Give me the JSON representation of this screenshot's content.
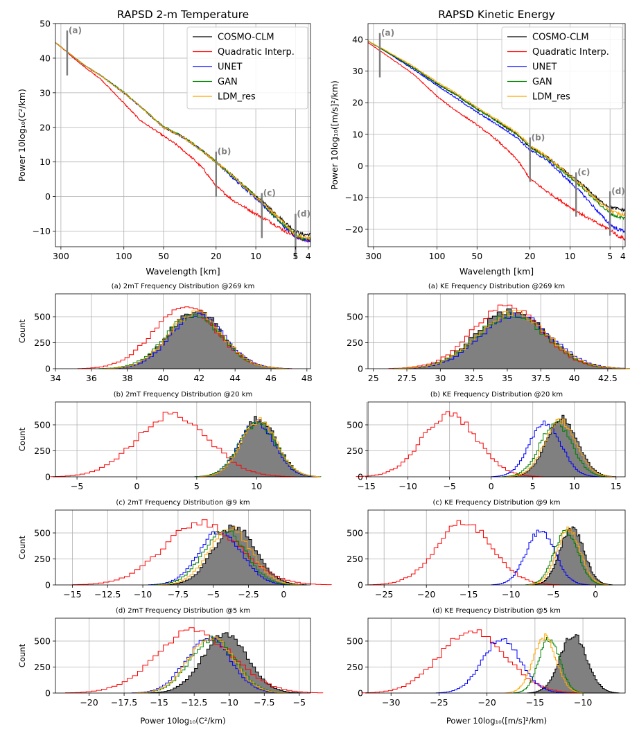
{
  "chart_data": [
    {
      "type": "line",
      "title": "RAPSD 2-m Temperature",
      "xlabel": "Wavelength [km]",
      "ylabel": "Power 10log₁₀(C²/km)",
      "xscale": "log, inverted",
      "xlim": [
        330,
        3.85
      ],
      "ylim": [
        -14.5,
        50
      ],
      "xticks": [
        300,
        100,
        50,
        20,
        10,
        5,
        4
      ],
      "yticks": [
        -10,
        0,
        10,
        20,
        30,
        40,
        50
      ],
      "legend": "top-right",
      "series": [
        {
          "name": "COSMO-CLM",
          "color": "#000000",
          "x": [
            330,
            200,
            150,
            100,
            75,
            50,
            35,
            25,
            20,
            15,
            10,
            8,
            6,
            5,
            4.4,
            3.9
          ],
          "y": [
            44.5,
            38,
            35,
            30,
            26,
            20,
            17,
            13,
            10,
            6,
            0,
            -3,
            -7.5,
            -10,
            -11,
            -11
          ]
        },
        {
          "name": "Quadratic Interp.",
          "color": "#ff0000",
          "x": [
            330,
            200,
            150,
            100,
            75,
            50,
            40,
            30,
            25,
            20,
            15,
            10,
            8,
            6,
            5,
            4.4,
            3.9
          ],
          "y": [
            44.5,
            37.5,
            34,
            27,
            22,
            17.5,
            15,
            11,
            8,
            3,
            -1,
            -5,
            -7,
            -10,
            -11.5,
            -12.5,
            -12.8
          ]
        },
        {
          "name": "UNET",
          "color": "#0000ff",
          "x": [
            330,
            200,
            150,
            100,
            75,
            50,
            35,
            25,
            20,
            15,
            10,
            8,
            6,
            5,
            4.4,
            3.9
          ],
          "y": [
            44.5,
            38,
            35,
            30,
            26,
            20,
            17,
            13,
            10,
            5.5,
            -0.5,
            -4,
            -9,
            -11.5,
            -12.3,
            -12.5
          ]
        },
        {
          "name": "GAN",
          "color": "#008000",
          "x": [
            330,
            200,
            150,
            100,
            75,
            50,
            35,
            25,
            20,
            15,
            10,
            8,
            6,
            5,
            4.4,
            3.9
          ],
          "y": [
            44.5,
            38,
            35,
            30.2,
            26,
            20.2,
            17.2,
            13,
            10,
            6,
            0,
            -4,
            -8.5,
            -11,
            -12,
            -12.3
          ]
        },
        {
          "name": "LDM_res",
          "color": "#ffa500",
          "x": [
            330,
            200,
            150,
            100,
            75,
            50,
            35,
            25,
            20,
            15,
            10,
            8,
            6,
            5,
            4.4,
            3.9
          ],
          "y": [
            44.5,
            38,
            35,
            30,
            26,
            20,
            17,
            13,
            10,
            6,
            0,
            -3.5,
            -8,
            -11,
            -11.8,
            -12
          ]
        }
      ],
      "markers": [
        {
          "label": "(a)",
          "x": 269,
          "y_from": 35,
          "y_to": 48
        },
        {
          "label": "(b)",
          "x": 20,
          "y_from": 0,
          "y_to": 13
        },
        {
          "label": "(c)",
          "x": 9,
          "y_from": -12,
          "y_to": 1
        },
        {
          "label": "(d)",
          "x": 5,
          "y_from": -18,
          "y_to": -5
        }
      ]
    },
    {
      "type": "line",
      "title": "RAPSD Kinetic Energy",
      "xlabel": "Wavelength [km]",
      "ylabel": "Power 10log₁₀([m/s]²/km)",
      "xscale": "log, inverted",
      "xlim": [
        330,
        3.85
      ],
      "ylim": [
        -25.5,
        45
      ],
      "xticks": [
        300,
        100,
        50,
        20,
        10,
        5,
        4
      ],
      "yticks": [
        -20,
        -10,
        0,
        10,
        20,
        30,
        40
      ],
      "legend": "top-right",
      "series": [
        {
          "name": "COSMO-CLM",
          "color": "#000000",
          "x": [
            330,
            250,
            150,
            100,
            75,
            50,
            35,
            25,
            20,
            15,
            10,
            8,
            6,
            5,
            4.4,
            3.9
          ],
          "y": [
            39.5,
            36.5,
            31,
            26,
            23,
            18,
            14,
            10,
            6,
            3,
            -3,
            -6,
            -11,
            -13,
            -13.5,
            -14
          ]
        },
        {
          "name": "Quadratic Interp.",
          "color": "#ff0000",
          "x": [
            330,
            250,
            150,
            100,
            75,
            50,
            35,
            25,
            20,
            15,
            10,
            8,
            6,
            5,
            4.4,
            3.9
          ],
          "y": [
            39,
            35.5,
            29,
            22,
            18,
            13,
            8,
            2,
            -4,
            -8,
            -13,
            -15.5,
            -18.5,
            -20,
            -22,
            -23
          ]
        },
        {
          "name": "UNET",
          "color": "#0000ff",
          "x": [
            330,
            250,
            150,
            100,
            75,
            50,
            35,
            25,
            20,
            15,
            10,
            8,
            6,
            5,
            4.4,
            3.9
          ],
          "y": [
            39.5,
            36.5,
            30.5,
            25.5,
            22,
            17,
            13,
            9,
            5,
            2,
            -5,
            -9,
            -15,
            -18.5,
            -20,
            -20.5
          ]
        },
        {
          "name": "GAN",
          "color": "#008000",
          "x": [
            330,
            250,
            150,
            100,
            75,
            50,
            35,
            25,
            20,
            15,
            10,
            8,
            6,
            5,
            4.4,
            3.9
          ],
          "y": [
            39.5,
            36.5,
            31,
            26,
            23,
            18,
            14,
            10,
            6,
            2.5,
            -3.5,
            -7,
            -12,
            -15,
            -16,
            -16.5
          ]
        },
        {
          "name": "LDM_res",
          "color": "#ffa500",
          "x": [
            330,
            250,
            150,
            100,
            75,
            50,
            35,
            25,
            20,
            15,
            10,
            8,
            6,
            5,
            4.4,
            3.9
          ],
          "y": [
            39.5,
            36.8,
            31.5,
            26.5,
            23.5,
            18.5,
            14.5,
            10.5,
            6.5,
            3,
            -3,
            -6.5,
            -11.5,
            -14,
            -15,
            -15.5
          ]
        }
      ],
      "markers": [
        {
          "label": "(a)",
          "x": 269,
          "y_from": 28,
          "y_to": 42
        },
        {
          "label": "(b)",
          "x": 20,
          "y_from": -5,
          "y_to": 9
        },
        {
          "label": "(c)",
          "x": 9,
          "y_from": -16,
          "y_to": -2
        },
        {
          "label": "(d)",
          "x": 5,
          "y_from": -22,
          "y_to": -8
        }
      ]
    },
    {
      "type": "histogram",
      "title": "(a) 2mT Frequency Distribution @269 km",
      "xlim": [
        34,
        48.2
      ],
      "xticks": [
        34,
        36,
        38,
        40,
        42,
        44,
        46,
        48
      ],
      "ylim": [
        0,
        720
      ],
      "yticks": [
        0,
        250,
        500
      ],
      "ylabel": "Count",
      "xlabel": "",
      "series": [
        {
          "name": "COSMO-CLM",
          "filled": true,
          "mean": 41.8,
          "sd": 1.5
        },
        {
          "name": "Quadratic Interp.",
          "mean": 41.2,
          "sd": 1.75
        },
        {
          "name": "UNET",
          "mean": 41.9,
          "sd": 1.5
        },
        {
          "name": "GAN",
          "mean": 41.7,
          "sd": 1.55
        },
        {
          "name": "LDM_res",
          "mean": 41.8,
          "sd": 1.5
        }
      ]
    },
    {
      "type": "histogram",
      "title": "(a) KE Frequency Distribution @269 km",
      "xlim": [
        24.6,
        43.8
      ],
      "xticks": [
        25.0,
        27.5,
        30.0,
        32.5,
        35.0,
        37.5,
        40.0,
        42.5
      ],
      "ylim": [
        0,
        720
      ],
      "yticks": [
        0,
        250,
        500
      ],
      "ylabel": "",
      "xlabel": "",
      "series": [
        {
          "name": "COSMO-CLM",
          "filled": true,
          "mean": 35.3,
          "sd": 2.6
        },
        {
          "name": "Quadratic Interp.",
          "mean": 35.0,
          "sd": 2.6
        },
        {
          "name": "UNET",
          "mean": 35.6,
          "sd": 2.6
        },
        {
          "name": "GAN",
          "mean": 35.3,
          "sd": 2.6
        },
        {
          "name": "LDM_res",
          "mean": 35.4,
          "sd": 2.6
        }
      ]
    },
    {
      "type": "histogram",
      "title": "(b) 2mT Frequency Distribution @20 km",
      "xlim": [
        -6.8,
        14.5
      ],
      "xticks": [
        -5,
        0,
        5,
        10
      ],
      "ylim": [
        0,
        720
      ],
      "yticks": [
        0,
        250,
        500
      ],
      "ylabel": "Count",
      "xlabel": "",
      "series": [
        {
          "name": "COSMO-CLM",
          "filled": true,
          "mean": 10.2,
          "sd": 1.5
        },
        {
          "name": "Quadratic Interp.",
          "mean": 3.0,
          "sd": 3.0
        },
        {
          "name": "UNET",
          "mean": 10.0,
          "sd": 1.5
        },
        {
          "name": "GAN",
          "mean": 10.1,
          "sd": 1.55
        },
        {
          "name": "LDM_res",
          "mean": 10.2,
          "sd": 1.5
        }
      ]
    },
    {
      "type": "histogram",
      "title": "(b) KE Frequency Distribution @20 km",
      "xlim": [
        -14.8,
        16.1
      ],
      "xticks": [
        -15,
        -10,
        -5,
        0,
        5,
        10,
        15
      ],
      "ylim": [
        0,
        720
      ],
      "yticks": [
        0,
        250,
        500
      ],
      "ylabel": "",
      "xlabel": "",
      "series": [
        {
          "name": "COSMO-CLM",
          "filled": true,
          "mean": 8.5,
          "sd": 1.9
        },
        {
          "name": "Quadratic Interp.",
          "mean": -5.0,
          "sd": 3.3
        },
        {
          "name": "UNET",
          "mean": 6.5,
          "sd": 1.9
        },
        {
          "name": "GAN",
          "mean": 7.8,
          "sd": 1.9
        },
        {
          "name": "LDM_res",
          "mean": 8.3,
          "sd": 1.9
        }
      ]
    },
    {
      "type": "histogram",
      "title": "(c) 2mT Frequency Distribution @9 km",
      "xlim": [
        -16.2,
        1.9
      ],
      "xticks": [
        -15.0,
        -12.5,
        -10.0,
        -7.5,
        -5.0,
        -2.5,
        0.0
      ],
      "ylim": [
        0,
        720
      ],
      "yticks": [
        0,
        250,
        500
      ],
      "ylabel": "Count",
      "xlabel": "",
      "series": [
        {
          "name": "COSMO-CLM",
          "filled": true,
          "mean": -3.5,
          "sd": 1.5
        },
        {
          "name": "Quadratic Interp.",
          "mean": -5.8,
          "sd": 2.7
        },
        {
          "name": "UNET",
          "mean": -4.5,
          "sd": 1.5
        },
        {
          "name": "GAN",
          "mean": -4.2,
          "sd": 1.5
        },
        {
          "name": "LDM_res",
          "mean": -3.8,
          "sd": 1.5
        }
      ]
    },
    {
      "type": "histogram",
      "title": "(c) KE Frequency Distribution @9 km",
      "xlim": [
        -26.9,
        3.5
      ],
      "xticks": [
        -25,
        -20,
        -15,
        -10,
        -5,
        0
      ],
      "ylim": [
        0,
        720
      ],
      "yticks": [
        0,
        250,
        500
      ],
      "ylabel": "",
      "xlabel": "",
      "series": [
        {
          "name": "COSMO-CLM",
          "filled": true,
          "mean": -2.8,
          "sd": 1.4
        },
        {
          "name": "Quadratic Interp.",
          "mean": -15.5,
          "sd": 3.3
        },
        {
          "name": "UNET",
          "mean": -6.5,
          "sd": 1.7
        },
        {
          "name": "GAN",
          "mean": -3.5,
          "sd": 1.4
        },
        {
          "name": "LDM_res",
          "mean": -3.2,
          "sd": 1.4
        }
      ]
    },
    {
      "type": "histogram",
      "title": "(d) 2mT Frequency Distribution @5 km",
      "xlim": [
        -22.4,
        -4.2
      ],
      "xticks": [
        -20.0,
        -17.5,
        -15.0,
        -12.5,
        -10.0,
        -7.5,
        -5.0
      ],
      "ylim": [
        0,
        720
      ],
      "yticks": [
        0,
        250,
        500
      ],
      "ylabel": "Count",
      "xlabel": "Power 10log₁₀(C²/km)",
      "series": [
        {
          "name": "COSMO-CLM",
          "filled": true,
          "mean": -10.3,
          "sd": 1.6
        },
        {
          "name": "Quadratic Interp.",
          "mean": -12.5,
          "sd": 2.7
        },
        {
          "name": "UNET",
          "mean": -11.5,
          "sd": 1.6
        },
        {
          "name": "GAN",
          "mean": -11.2,
          "sd": 1.6
        },
        {
          "name": "LDM_res",
          "mean": -11.3,
          "sd": 1.6
        }
      ]
    },
    {
      "type": "histogram",
      "title": "(d) KE Frequency Distribution @5 km",
      "xlim": [
        -32.4,
        -5.6
      ],
      "xticks": [
        -30,
        -25,
        -20,
        -15,
        -10
      ],
      "ylim": [
        0,
        720
      ],
      "yticks": [
        0,
        250,
        500
      ],
      "ylabel": "",
      "xlabel": "Power 10log₁₀([m/s]²/km)",
      "series": [
        {
          "name": "COSMO-CLM",
          "filled": true,
          "mean": -11.0,
          "sd": 1.4
        },
        {
          "name": "Quadratic Interp.",
          "mean": -21.5,
          "sd": 3.4
        },
        {
          "name": "UNET",
          "mean": -18.5,
          "sd": 2.0
        },
        {
          "name": "GAN",
          "mean": -13.5,
          "sd": 1.1
        },
        {
          "name": "LDM_res",
          "mean": -14.0,
          "sd": 1.2
        }
      ]
    }
  ],
  "series_colors": {
    "COSMO-CLM": "#000000",
    "Quadratic Interp.": "#ff0000",
    "UNET": "#0000ff",
    "GAN": "#008000",
    "LDM_res": "#ffa500",
    "fill": "#808080"
  }
}
